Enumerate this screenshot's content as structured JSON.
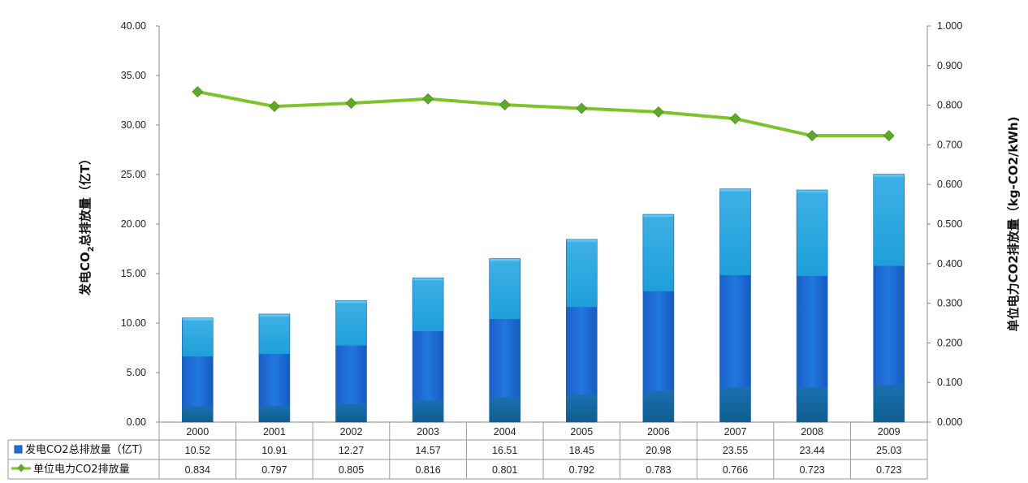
{
  "chart_data": {
    "type": "bar",
    "categories": [
      "2000",
      "2001",
      "2002",
      "2003",
      "2004",
      "2005",
      "2006",
      "2007",
      "2008",
      "2009"
    ],
    "series": [
      {
        "name": "发电CO2总排放量（亿T）",
        "type": "bar",
        "axis": "left",
        "values": [
          10.52,
          10.91,
          12.27,
          14.57,
          16.51,
          18.45,
          20.98,
          23.55,
          23.44,
          25.03
        ],
        "value_labels": [
          "10.52",
          "10.91",
          "12.27",
          "14.57",
          "16.51",
          "18.45",
          "20.98",
          "23.55",
          "23.44",
          "25.03"
        ],
        "color": "#1f6fd6"
      },
      {
        "name": "单位电力CO2排放量",
        "type": "line",
        "axis": "right",
        "values": [
          0.834,
          0.797,
          0.805,
          0.816,
          0.801,
          0.792,
          0.783,
          0.766,
          0.723,
          0.723
        ],
        "value_labels": [
          "0.834",
          "0.797",
          "0.805",
          "0.816",
          "0.801",
          "0.792",
          "0.783",
          "0.766",
          "0.723",
          "0.723"
        ],
        "color": "#7dc42a"
      }
    ],
    "y_left": {
      "label_prefix": "发电CO",
      "label_sub": "2",
      "label_suffix": "总排放量（亿T）",
      "ylim": [
        0,
        40
      ],
      "ticks": [
        "0.00",
        "5.00",
        "10.00",
        "15.00",
        "20.00",
        "25.00",
        "30.00",
        "35.00",
        "40.00"
      ]
    },
    "y_right": {
      "label": "单位电力CO2排放量（kg-CO2/kWh)",
      "ylim": [
        0,
        1
      ],
      "ticks": [
        "0.000",
        "0.100",
        "0.200",
        "0.300",
        "0.400",
        "0.500",
        "0.600",
        "0.700",
        "0.800",
        "0.900",
        "1.000"
      ]
    },
    "grid": false,
    "data_table": true
  }
}
